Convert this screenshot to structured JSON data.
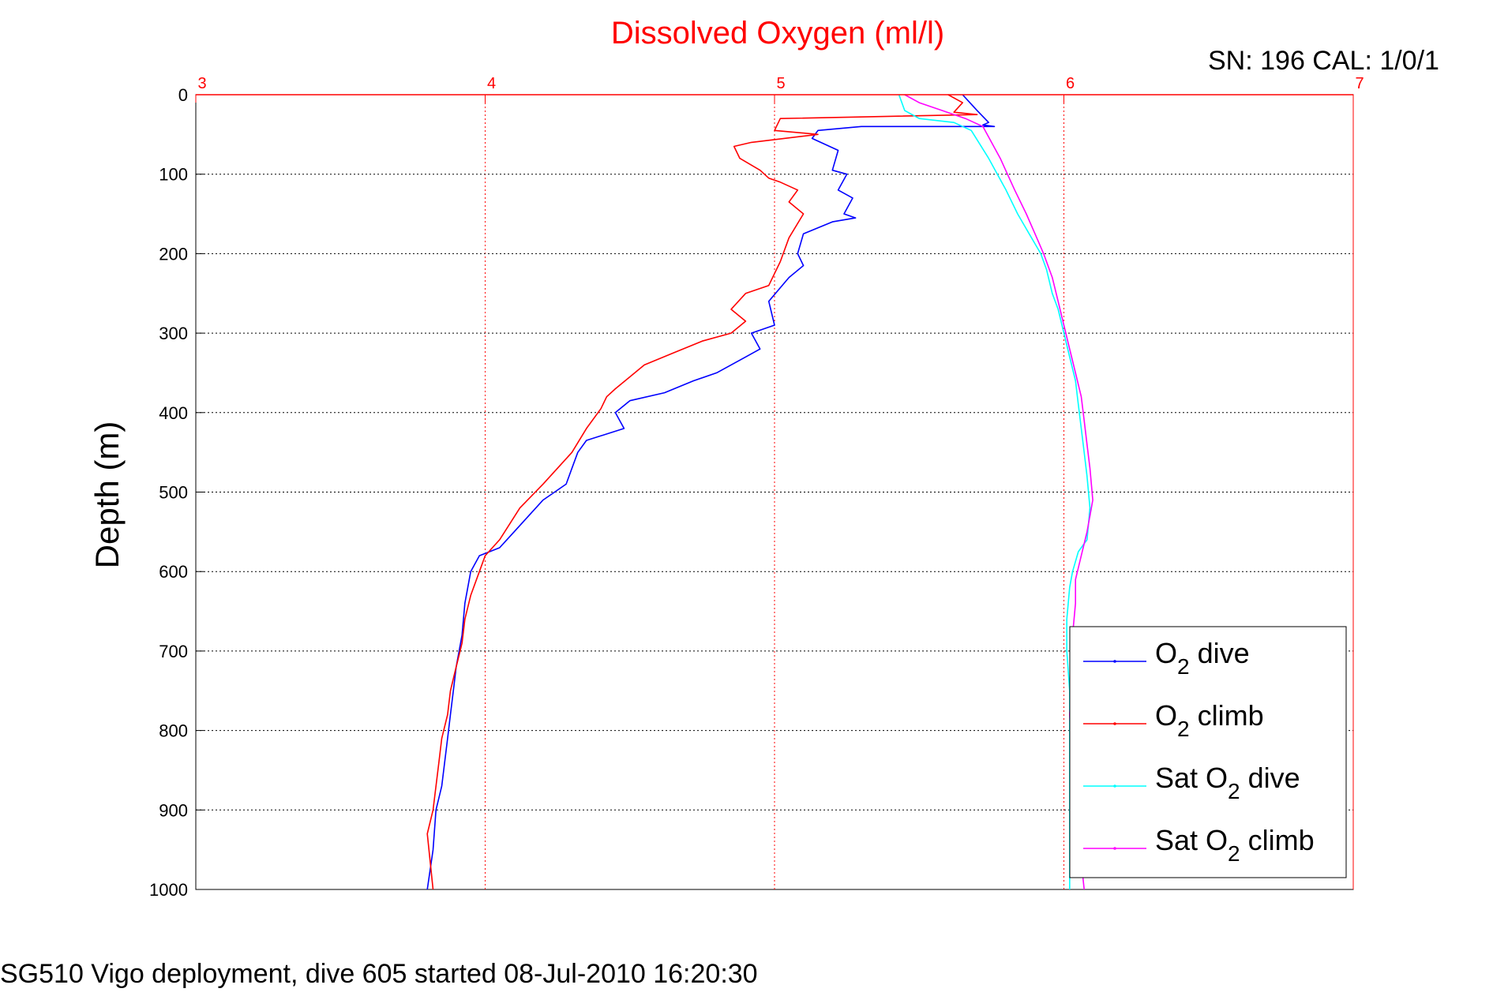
{
  "chart_data": {
    "type": "line",
    "title": "Dissolved Oxygen (ml/l)",
    "ylabel": "Depth (m)",
    "xlabel": "",
    "serial_note": "SN: 196  CAL: 1/0/1",
    "footer": "SG510 Vigo deployment, dive 605 started 08-Jul-2010 16:20:30",
    "xlim": [
      3,
      7
    ],
    "ylim": [
      0,
      1000
    ],
    "y_reversed": true,
    "x_axis_position": "top",
    "grid": true,
    "legend_position": "bottom-right",
    "x_ticks": [
      "3",
      "4",
      "5",
      "6",
      "7"
    ],
    "y_ticks": [
      "0",
      "100",
      "200",
      "300",
      "400",
      "500",
      "600",
      "700",
      "800",
      "900",
      "1000"
    ],
    "colors": {
      "title": "#ff0000",
      "x_axis": "#ff0000",
      "o2_dive": "#0000ff",
      "o2_climb": "#ff0000",
      "sat_dive": "#00ffff",
      "sat_climb": "#ff00ff"
    },
    "series": [
      {
        "name": "O2 dive",
        "legend_main": "O",
        "legend_sub": "2",
        "legend_tail": " dive",
        "color": "#0000ff",
        "x": [
          5.65,
          5.7,
          5.74,
          5.72,
          5.76,
          5.3,
          5.15,
          5.13,
          5.22,
          5.2,
          5.25,
          5.22,
          5.27,
          5.24,
          5.28,
          5.2,
          5.1,
          5.08,
          5.1,
          5.05,
          4.98,
          5.0,
          4.92,
          4.95,
          4.9,
          4.8,
          4.72,
          4.62,
          4.5,
          4.45,
          4.48,
          4.35,
          4.32,
          4.3,
          4.28,
          4.2,
          4.15,
          4.1,
          4.05,
          3.98,
          3.95,
          3.93,
          3.92,
          3.9,
          3.89,
          3.88,
          3.87,
          3.86,
          3.85,
          3.83,
          3.82,
          3.8
        ],
        "y": [
          0,
          20,
          35,
          38,
          40,
          40,
          45,
          55,
          70,
          95,
          100,
          120,
          130,
          150,
          155,
          160,
          175,
          200,
          215,
          230,
          260,
          290,
          300,
          320,
          330,
          350,
          360,
          375,
          385,
          400,
          420,
          435,
          450,
          470,
          490,
          510,
          530,
          550,
          570,
          580,
          600,
          640,
          680,
          720,
          750,
          780,
          810,
          840,
          870,
          900,
          950,
          1000
        ]
      },
      {
        "name": "O2 climb",
        "legend_main": "O",
        "legend_sub": "2",
        "legend_tail": " climb",
        "color": "#ff0000",
        "x": [
          5.6,
          5.65,
          5.62,
          5.7,
          5.02,
          5.0,
          5.15,
          4.92,
          4.86,
          4.88,
          4.95,
          4.98,
          5.02,
          5.08,
          5.05,
          5.1,
          5.05,
          5.02,
          4.98,
          4.9,
          4.85,
          4.9,
          4.85,
          4.75,
          4.65,
          4.55,
          4.5,
          4.45,
          4.42,
          4.4,
          4.35,
          4.3,
          4.25,
          4.2,
          4.12,
          4.05,
          4.0,
          3.98,
          3.95,
          3.93,
          3.92,
          3.9,
          3.88,
          3.87,
          3.85,
          3.84,
          3.83,
          3.82,
          3.8,
          3.82
        ],
        "y": [
          0,
          10,
          22,
          25,
          30,
          45,
          50,
          60,
          65,
          80,
          95,
          105,
          110,
          120,
          135,
          150,
          180,
          210,
          240,
          250,
          270,
          285,
          300,
          310,
          325,
          340,
          355,
          370,
          380,
          395,
          420,
          450,
          470,
          490,
          520,
          560,
          580,
          600,
          630,
          660,
          690,
          720,
          750,
          780,
          810,
          840,
          870,
          900,
          930,
          1000
        ]
      },
      {
        "name": "Sat O2 dive",
        "legend_main": "Sat O",
        "legend_sub": "2",
        "legend_tail": " dive",
        "color": "#00ffff",
        "x": [
          5.43,
          5.45,
          5.5,
          5.62,
          5.68,
          5.74,
          5.8,
          5.84,
          5.88,
          5.92,
          5.94,
          5.96,
          5.98,
          6.0,
          6.02,
          6.04,
          6.05,
          6.06,
          6.07,
          6.08,
          6.09,
          6.08,
          6.05,
          6.03,
          6.02,
          6.01,
          6.01,
          6.02,
          6.02,
          6.02
        ],
        "y": [
          0,
          20,
          30,
          35,
          45,
          80,
          120,
          150,
          175,
          200,
          220,
          250,
          270,
          300,
          330,
          360,
          390,
          420,
          450,
          480,
          520,
          560,
          575,
          600,
          620,
          660,
          700,
          750,
          850,
          1000
        ]
      },
      {
        "name": "Sat O2 climb",
        "legend_main": "Sat O",
        "legend_sub": "2",
        "legend_tail": " climb",
        "color": "#ff00ff",
        "x": [
          5.45,
          5.5,
          5.58,
          5.66,
          5.72,
          5.78,
          5.83,
          5.87,
          5.9,
          5.93,
          5.96,
          5.98,
          6.0,
          6.02,
          6.04,
          6.06,
          6.07,
          6.08,
          6.09,
          6.1,
          6.08,
          6.06,
          6.04,
          6.04,
          6.03,
          6.03,
          6.02,
          6.03,
          6.05,
          6.07
        ],
        "y": [
          0,
          10,
          20,
          30,
          40,
          80,
          120,
          150,
          175,
          200,
          230,
          260,
          290,
          320,
          350,
          380,
          410,
          440,
          470,
          510,
          550,
          580,
          610,
          640,
          680,
          720,
          780,
          850,
          930,
          1000
        ]
      }
    ]
  }
}
